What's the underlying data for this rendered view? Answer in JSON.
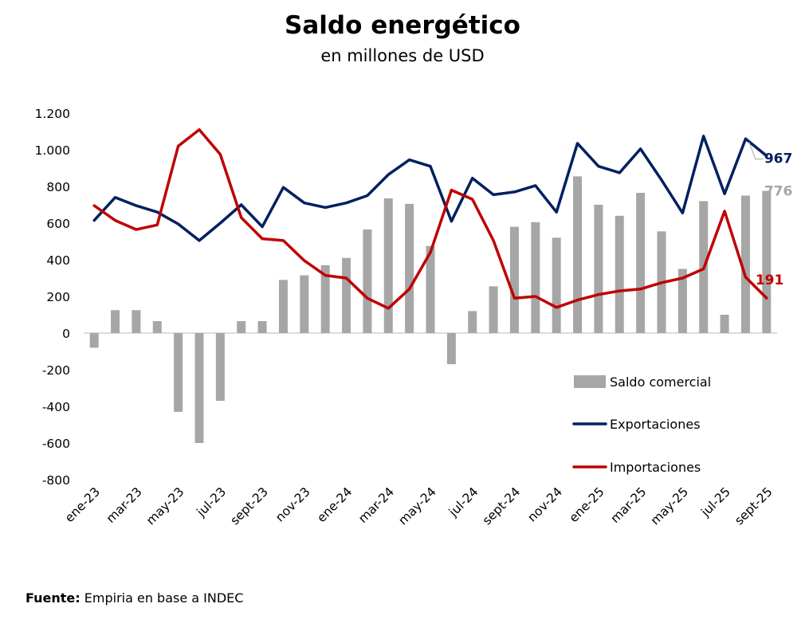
{
  "header": {
    "title": "Saldo energético",
    "subtitle": "en millones de USD"
  },
  "source": {
    "label": "Fuente:",
    "text": "Empiria en base a INDEC"
  },
  "chart_data": {
    "type": "bar+line",
    "title": "Saldo energético",
    "subtitle": "en millones de USD",
    "xlabel": "",
    "ylabel": "",
    "ylim": [
      -800,
      1200
    ],
    "yticks": [
      1200,
      1000,
      800,
      600,
      400,
      200,
      0,
      -200,
      -400,
      -600,
      -800
    ],
    "ytick_labels": [
      "1.200",
      "1.000",
      "800",
      "600",
      "400",
      "200",
      "0",
      "-200",
      "-400",
      "-600",
      "-800"
    ],
    "categories": [
      "ene-23",
      "feb-23",
      "mar-23",
      "abr-23",
      "may-23",
      "jun-23",
      "jul-23",
      "ago-23",
      "sept-23",
      "oct-23",
      "nov-23",
      "dic-23",
      "ene-24",
      "feb-24",
      "mar-24",
      "abr-24",
      "may-24",
      "jun-24",
      "jul-24",
      "ago-24",
      "sept-24",
      "oct-24",
      "nov-24",
      "dic-24",
      "ene-25",
      "feb-25",
      "mar-25",
      "abr-25",
      "may-25",
      "jun-25",
      "jul-25",
      "ago-25",
      "sept-25"
    ],
    "xtick_labels": [
      "ene-23",
      "mar-23",
      "may-23",
      "jul-23",
      "sept-23",
      "nov-23",
      "ene-24",
      "mar-24",
      "may-24",
      "jul-24",
      "sept-24",
      "nov-24",
      "ene-25",
      "mar-25",
      "may-25",
      "jul-25",
      "sept-25"
    ],
    "series": [
      {
        "name": "Saldo comercial",
        "type": "bar",
        "color": "#a6a6a6",
        "values": [
          -80,
          125,
          125,
          65,
          -430,
          -600,
          -370,
          65,
          65,
          290,
          315,
          370,
          410,
          565,
          735,
          705,
          475,
          -170,
          120,
          255,
          580,
          605,
          520,
          855,
          700,
          640,
          765,
          555,
          350,
          720,
          100,
          750,
          776
        ]
      },
      {
        "name": "Exportaciones",
        "type": "line",
        "color": "#002060",
        "values": [
          615,
          740,
          695,
          660,
          595,
          505,
          600,
          700,
          580,
          795,
          710,
          685,
          710,
          750,
          865,
          945,
          910,
          610,
          845,
          755,
          770,
          805,
          660,
          1035,
          910,
          875,
          1005,
          835,
          655,
          1075,
          760,
          1060,
          967
        ]
      },
      {
        "name": "Importaciones",
        "type": "line",
        "color": "#c00000",
        "values": [
          695,
          615,
          565,
          590,
          1020,
          1110,
          975,
          630,
          515,
          505,
          395,
          315,
          300,
          190,
          135,
          240,
          440,
          780,
          730,
          505,
          190,
          200,
          140,
          180,
          210,
          230,
          240,
          275,
          300,
          350,
          665,
          305,
          191
        ]
      }
    ],
    "end_labels": [
      {
        "series": "Exportaciones",
        "text": "967",
        "color": "#002060"
      },
      {
        "series": "Saldo comercial",
        "text": "776",
        "color": "#a6a6a6"
      },
      {
        "series": "Importaciones",
        "text": "191",
        "color": "#c00000"
      }
    ],
    "legend": {
      "placement": "bottom-right",
      "items": [
        {
          "label": "Saldo comercial",
          "color": "#a6a6a6",
          "kind": "bar"
        },
        {
          "label": "Exportaciones",
          "color": "#002060",
          "kind": "line"
        },
        {
          "label": "Importaciones",
          "color": "#c00000",
          "kind": "line"
        }
      ]
    }
  }
}
